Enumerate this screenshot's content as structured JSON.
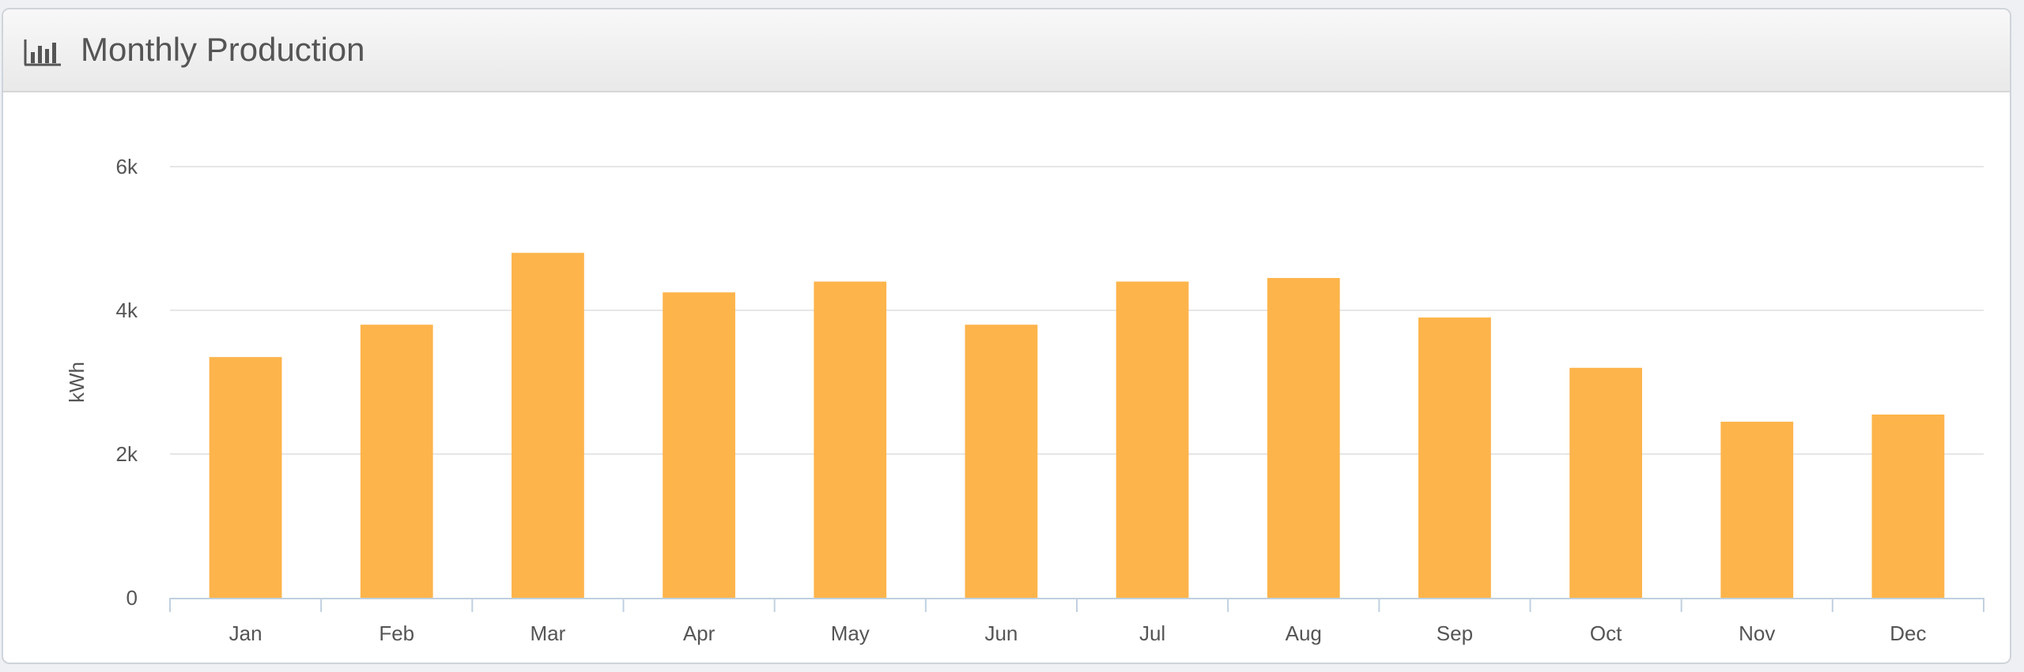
{
  "panel": {
    "title": "Monthly Production",
    "icon": "bar-chart-icon"
  },
  "colors": {
    "bar": "#FDB44B",
    "grid": "#e6e6e6",
    "axis": "#c0d0e0",
    "text": "#555555"
  },
  "chart_data": {
    "type": "bar",
    "title": "",
    "xlabel": "",
    "ylabel": "kWh",
    "categories": [
      "Jan",
      "Feb",
      "Mar",
      "Apr",
      "May",
      "Jun",
      "Jul",
      "Aug",
      "Sep",
      "Oct",
      "Nov",
      "Dec"
    ],
    "values": [
      3350,
      3800,
      4800,
      4250,
      4400,
      3800,
      4400,
      4450,
      3900,
      3200,
      2450,
      2550
    ],
    "ylim": [
      0,
      6000
    ],
    "yticks": [
      0,
      2000,
      4000,
      6000
    ],
    "ytick_labels": [
      "0",
      "2k",
      "4k",
      "6k"
    ],
    "grid": true,
    "legend": "none"
  }
}
